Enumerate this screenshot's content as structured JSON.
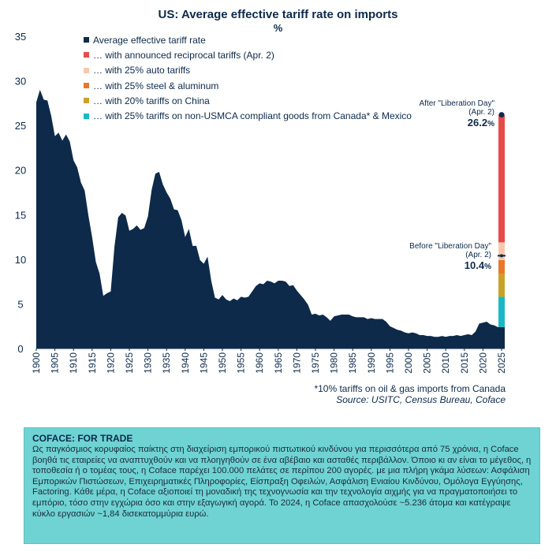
{
  "chart_data": {
    "type": "area",
    "title": "US: Average effective tariff rate on imports",
    "subtitle": "%",
    "xlim": [
      1900,
      2025
    ],
    "ylim": [
      0,
      35
    ],
    "yticks": [
      0,
      5,
      10,
      15,
      20,
      25,
      30,
      35
    ],
    "xticks": [
      1900,
      1905,
      1910,
      1915,
      1920,
      1925,
      1930,
      1935,
      1940,
      1945,
      1950,
      1955,
      1960,
      1965,
      1970,
      1975,
      1980,
      1985,
      1990,
      1995,
      2000,
      2005,
      2010,
      2015,
      2020,
      2025
    ],
    "series": [
      {
        "name": "Average effective tariff rate",
        "color": "#0d2a4a",
        "x": [
          1900,
          1901,
          1902,
          1903,
          1904,
          1905,
          1906,
          1907,
          1908,
          1909,
          1910,
          1911,
          1912,
          1913,
          1914,
          1915,
          1916,
          1917,
          1918,
          1919,
          1920,
          1921,
          1922,
          1923,
          1924,
          1925,
          1926,
          1927,
          1928,
          1929,
          1930,
          1931,
          1932,
          1933,
          1934,
          1935,
          1936,
          1937,
          1938,
          1939,
          1940,
          1941,
          1942,
          1943,
          1944,
          1945,
          1946,
          1947,
          1948,
          1949,
          1950,
          1951,
          1952,
          1953,
          1954,
          1955,
          1956,
          1957,
          1958,
          1959,
          1960,
          1961,
          1962,
          1963,
          1964,
          1965,
          1966,
          1967,
          1968,
          1969,
          1970,
          1971,
          1972,
          1973,
          1974,
          1975,
          1976,
          1977,
          1978,
          1979,
          1980,
          1981,
          1982,
          1983,
          1984,
          1985,
          1986,
          1987,
          1988,
          1989,
          1990,
          1991,
          1992,
          1993,
          1994,
          1995,
          1996,
          1997,
          1998,
          1999,
          2000,
          2001,
          2002,
          2003,
          2004,
          2005,
          2006,
          2007,
          2008,
          2009,
          2010,
          2011,
          2012,
          2013,
          2014,
          2015,
          2016,
          2017,
          2018,
          2019,
          2020,
          2021,
          2022,
          2023,
          2024
        ],
        "values": [
          27.6,
          29.0,
          27.9,
          27.8,
          26.1,
          23.8,
          24.2,
          23.3,
          24.0,
          23.2,
          21.1,
          20.3,
          18.6,
          17.7,
          14.9,
          12.5,
          9.7,
          8.4,
          5.9,
          6.2,
          6.4,
          11.4,
          14.7,
          15.2,
          14.9,
          13.2,
          13.4,
          13.8,
          13.3,
          13.5,
          14.8,
          17.8,
          19.6,
          19.8,
          18.4,
          17.5,
          16.8,
          15.6,
          15.5,
          14.4,
          12.5,
          13.4,
          11.5,
          11.5,
          9.9,
          9.5,
          10.3,
          7.6,
          5.7,
          5.5,
          6.0,
          5.5,
          5.3,
          5.6,
          5.4,
          5.8,
          5.7,
          5.8,
          6.4,
          7.0,
          7.3,
          7.2,
          7.6,
          7.5,
          7.3,
          7.6,
          7.6,
          7.5,
          7.0,
          7.1,
          6.5,
          6.0,
          5.5,
          4.9,
          3.8,
          3.9,
          3.7,
          3.8,
          3.5,
          3.1,
          3.6,
          3.7,
          3.8,
          3.8,
          3.8,
          3.6,
          3.5,
          3.5,
          3.5,
          3.3,
          3.4,
          3.3,
          3.3,
          3.3,
          3.0,
          2.5,
          2.3,
          2.1,
          2.0,
          1.8,
          1.7,
          1.8,
          1.7,
          1.5,
          1.5,
          1.4,
          1.4,
          1.3,
          1.3,
          1.4,
          1.3,
          1.4,
          1.4,
          1.5,
          1.4,
          1.5,
          1.6,
          1.5,
          1.9,
          2.8,
          2.9,
          3.0,
          2.7,
          2.6,
          2.4
        ]
      }
    ],
    "stack_2025": {
      "x": 2025,
      "segments": [
        {
          "name": "Average effective tariff rate",
          "value": 2.4,
          "color": "#0d2a4a"
        },
        {
          "name": "… with 25% tariffs on non-USMCA compliant goods from Canada* & Mexico",
          "value": 3.4,
          "color": "#19b8c4"
        },
        {
          "name": "… with 20% tariffs on China",
          "value": 2.6,
          "color": "#c9a227"
        },
        {
          "name": "… with 25% steel & aluminum",
          "value": 1.5,
          "color": "#e8762c"
        },
        {
          "name": "… with 25% auto tariffs",
          "value": 2.0,
          "color": "#f7c8ac"
        },
        {
          "name": "… with announced reciprocal tariffs (Apr. 2)",
          "value": 14.3,
          "color": "#e84a4a"
        }
      ],
      "before_value": 10.4,
      "after_value": 26.2
    },
    "legend": [
      {
        "label": "Average effective tariff rate",
        "color": "#0d2a4a"
      },
      {
        "label": "… with announced reciprocal tariffs (Apr. 2)",
        "color": "#e84a4a"
      },
      {
        "label": "… with 25% auto tariffs",
        "color": "#f7c8ac"
      },
      {
        "label": "… with 25% steel & aluminum",
        "color": "#e8762c"
      },
      {
        "label": "… with 20% tariffs on China",
        "color": "#c9a227"
      },
      {
        "label": "… with 25% tariffs on non-USMCA compliant goods from Canada* & Mexico",
        "color": "#19b8c4"
      }
    ],
    "annotations": {
      "after": {
        "line1": "After \"Liberation Day\"",
        "line2": "(Apr. 2)",
        "value": "26.2",
        "unit": "%"
      },
      "before": {
        "line1": "Before \"Liberation Day\"",
        "line2": "(Apr. 2)",
        "value": "10.4",
        "unit": "%"
      }
    },
    "footnote": "*10% tariffs on oil & gas imports from Canada",
    "source": "Source: USITC, Census Bureau, Coface",
    "grid": false,
    "legend_position": "top-left"
  },
  "infobox": {
    "title": "COFACE: FOR TRADE",
    "text": "Ως παγκόσμιος κορυφαίος παίκτης στη διαχείριση εμπορικού πιστωτικού κινδύνου για περισσότερα από 75 χρόνια, η Coface βοηθά τις εταιρείες να αναπτυχθούν και να πλοηγηθούν σε ένα αβέβαιο και ασταθές περιβάλλον. Όποιο κι αν είναι το μέγεθος, η τοποθεσία ή ο τομέας τους, η Coface παρέχει 100.000 πελάτες σε περίπου 200 αγορές. με μια πλήρη γκάμα λύσεων: Ασφάλιση Εμπορικών Πιστώσεων, Επιχειρηματικές Πληροφορίες, Είσπραξη Οφειλών, Ασφάλιση Ενιαίου Κινδύνου, Ομόλογα Εγγύησης, Factoring. Κάθε μέρα, η Coface αξιοποιεί τη μοναδική της τεχνογνωσία και την τεχνολογία αιχμής για να πραγματοποιήσει το εμπόριο, τόσο στην εγχώρια όσο και στην εξαγωγική αγορά. Το 2024, η Coface απασχολούσε ~5.236 άτομα και κατέγραψε κύκλο εργασιών ~1,84 δισεκατομμύρια ευρώ.",
    "background": "#6fd3d3"
  }
}
